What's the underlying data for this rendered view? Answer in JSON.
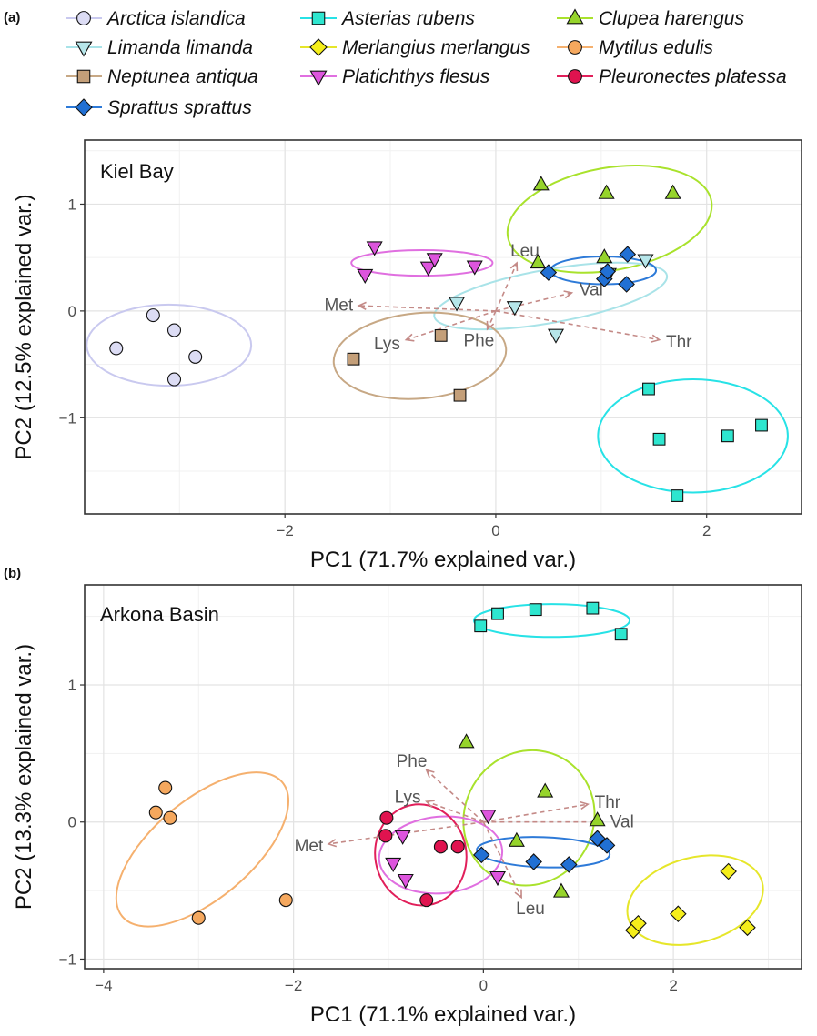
{
  "figure": {
    "panel_labels": [
      "(a)",
      "(b)"
    ]
  },
  "legend": {
    "entries": [
      {
        "species": "Arctica islandica",
        "shape": "circle",
        "fill": "#dcdcf4",
        "stroke": "#c9c9ef"
      },
      {
        "species": "Asterias rubens",
        "shape": "square",
        "fill": "#2ee6cf",
        "stroke": "#27e2e6"
      },
      {
        "species": "Clupea harengus",
        "shape": "triangle",
        "fill": "#96d42b",
        "stroke": "#a9e22c"
      },
      {
        "species": "Limanda limanda",
        "shape": "tri-down",
        "fill": "#b6e6ea",
        "stroke": "#a9e3e8"
      },
      {
        "species": "Merlangius merlangus",
        "shape": "diamond",
        "fill": "#f5ee1a",
        "stroke": "#e6e62a"
      },
      {
        "species": "Mytilus edulis",
        "shape": "circle",
        "fill": "#f5a85e",
        "stroke": "#f5b06e"
      },
      {
        "species": "Neptunea antiqua",
        "shape": "square",
        "fill": "#c49f79",
        "stroke": "#c7a885"
      },
      {
        "species": "Platichthys flesus",
        "shape": "tri-down",
        "fill": "#dd55dd",
        "stroke": "#e06fe0"
      },
      {
        "species": "Pleuronectes platessa",
        "shape": "circle",
        "fill": "#e0134f",
        "stroke": "#e11f5a"
      },
      {
        "species": "Sprattus sprattus",
        "shape": "diamond",
        "fill": "#2170d4",
        "stroke": "#2d7ad8"
      }
    ]
  },
  "chart_data": [
    {
      "type": "scatter",
      "panel": "(a)",
      "title": "Kiel Bay",
      "xlabel": "PC1 (71.7% explained var.)",
      "ylabel": "PC2 (12.5% explained var.)",
      "xlim": [
        -3.9,
        2.9
      ],
      "ylim": [
        -1.9,
        1.6
      ],
      "x_ticks": [
        -2,
        0,
        2
      ],
      "y_ticks": [
        -1,
        0,
        1
      ],
      "x_tick_labels": [
        "−2",
        "0",
        "2"
      ],
      "y_tick_labels": [
        "−1",
        "0",
        "1"
      ],
      "grid": true,
      "series": [
        {
          "name": "Arctica islandica",
          "points": [
            [
              -3.6,
              -0.35
            ],
            [
              -3.25,
              -0.04
            ],
            [
              -3.05,
              -0.18
            ],
            [
              -2.85,
              -0.43
            ],
            [
              -3.05,
              -0.64
            ]
          ],
          "ellipse": {
            "cx": -3.1,
            "cy": -0.32,
            "rx": 0.78,
            "ry": 0.38,
            "angle": 0
          }
        },
        {
          "name": "Asterias rubens",
          "points": [
            [
              1.45,
              -0.73
            ],
            [
              1.55,
              -1.2
            ],
            [
              1.72,
              -1.73
            ],
            [
              2.2,
              -1.17
            ],
            [
              2.52,
              -1.07
            ]
          ],
          "ellipse": {
            "cx": 1.87,
            "cy": -1.17,
            "rx": 0.9,
            "ry": 0.53,
            "angle": 0
          }
        },
        {
          "name": "Clupea harengus",
          "points": [
            [
              0.43,
              1.18
            ],
            [
              1.05,
              1.1
            ],
            [
              1.68,
              1.1
            ],
            [
              0.4,
              0.45
            ],
            [
              1.03,
              0.5
            ]
          ],
          "ellipse": {
            "cx": 1.08,
            "cy": 0.86,
            "rx": 0.98,
            "ry": 0.48,
            "angle": -10
          }
        },
        {
          "name": "Limanda limanda",
          "points": [
            [
              -0.37,
              0.08
            ],
            [
              0.18,
              0.04
            ],
            [
              0.57,
              -0.22
            ],
            [
              1.42,
              0.48
            ],
            [
              1.07,
              0.35
            ]
          ],
          "ellipse": {
            "cx": 0.52,
            "cy": 0.14,
            "rx": 1.12,
            "ry": 0.25,
            "angle": -10
          }
        },
        {
          "name": "Neptunea antiqua",
          "points": [
            [
              -1.35,
              -0.45
            ],
            [
              -0.52,
              -0.23
            ],
            [
              -0.34,
              -0.79
            ]
          ],
          "ellipse": {
            "cx": -0.72,
            "cy": -0.42,
            "rx": 0.82,
            "ry": 0.4,
            "angle": -5
          }
        },
        {
          "name": "Platichthys flesus",
          "points": [
            [
              -1.15,
              0.6
            ],
            [
              -1.24,
              0.34
            ],
            [
              -0.64,
              0.41
            ],
            [
              -0.58,
              0.49
            ],
            [
              -0.2,
              0.42
            ]
          ],
          "ellipse": {
            "cx": -0.7,
            "cy": 0.45,
            "rx": 0.67,
            "ry": 0.12,
            "angle": 0
          }
        },
        {
          "name": "Sprattus sprattus",
          "points": [
            [
              0.5,
              0.36
            ],
            [
              1.03,
              0.3
            ],
            [
              1.06,
              0.37
            ],
            [
              1.24,
              0.25
            ],
            [
              1.25,
              0.53
            ]
          ],
          "ellipse": {
            "cx": 1.02,
            "cy": 0.38,
            "rx": 0.5,
            "ry": 0.13,
            "angle": 0
          }
        }
      ],
      "loadings": [
        {
          "label": "Met",
          "x": -1.3,
          "y": 0.05
        },
        {
          "label": "Lys",
          "x": -0.85,
          "y": -0.27
        },
        {
          "label": "Phe",
          "x": -0.08,
          "y": -0.17
        },
        {
          "label": "Leu",
          "x": 0.2,
          "y": 0.45
        },
        {
          "label": "Val",
          "x": 0.72,
          "y": 0.17
        },
        {
          "label": "Thr",
          "x": 1.55,
          "y": -0.27
        }
      ]
    },
    {
      "type": "scatter",
      "panel": "(b)",
      "title": "Arkona Basin",
      "xlabel": "PC1 (71.1% explained var.)",
      "ylabel": "PC2 (13.3% explained var.)",
      "xlim": [
        -4.2,
        3.35
      ],
      "ylim": [
        -1.07,
        1.73
      ],
      "x_ticks": [
        -4,
        -2,
        0,
        2
      ],
      "y_ticks": [
        -1,
        0,
        1
      ],
      "x_tick_labels": [
        "−4",
        "−2",
        "0",
        "2"
      ],
      "y_tick_labels": [
        "−1",
        "0",
        "1"
      ],
      "grid": true,
      "series": [
        {
          "name": "Asterias rubens",
          "points": [
            [
              -0.03,
              1.43
            ],
            [
              0.15,
              1.52
            ],
            [
              0.55,
              1.55
            ],
            [
              1.15,
              1.56
            ],
            [
              1.45,
              1.37
            ]
          ],
          "ellipse": {
            "cx": 0.72,
            "cy": 1.47,
            "rx": 0.82,
            "ry": 0.12,
            "angle": 0
          }
        },
        {
          "name": "Clupea harengus",
          "points": [
            [
              -0.18,
              0.58
            ],
            [
              0.65,
              0.22
            ],
            [
              1.2,
              0.01
            ],
            [
              0.35,
              -0.14
            ],
            [
              0.82,
              -0.51
            ]
          ],
          "ellipse": {
            "cx": 0.48,
            "cy": 0.03,
            "rx": 0.68,
            "ry": 0.5,
            "angle": 30
          }
        },
        {
          "name": "Merlangius merlangus",
          "points": [
            [
              1.58,
              -0.79
            ],
            [
              1.63,
              -0.74
            ],
            [
              2.05,
              -0.67
            ],
            [
              2.58,
              -0.36
            ],
            [
              2.78,
              -0.77
            ]
          ],
          "ellipse": {
            "cx": 2.23,
            "cy": -0.57,
            "rx": 0.73,
            "ry": 0.31,
            "angle": -15
          }
        },
        {
          "name": "Mytilus edulis",
          "points": [
            [
              -3.45,
              0.07
            ],
            [
              -3.35,
              0.25
            ],
            [
              -3.3,
              0.03
            ],
            [
              -3.0,
              -0.7
            ],
            [
              -2.08,
              -0.57
            ]
          ],
          "ellipse": {
            "cx": -2.96,
            "cy": -0.2,
            "rx": 1.1,
            "ry": 0.36,
            "angle": -40
          }
        },
        {
          "name": "Platichthys flesus",
          "points": [
            [
              -0.85,
              -0.1
            ],
            [
              -0.95,
              -0.3
            ],
            [
              -0.82,
              -0.42
            ],
            [
              0.05,
              0.05
            ],
            [
              0.15,
              -0.4
            ]
          ],
          "ellipse": {
            "cx": -0.45,
            "cy": -0.24,
            "rx": 0.65,
            "ry": 0.28,
            "angle": -5
          }
        },
        {
          "name": "Pleuronectes platessa",
          "points": [
            [
              -1.02,
              0.03
            ],
            [
              -1.03,
              -0.1
            ],
            [
              -0.45,
              -0.18
            ],
            [
              -0.27,
              -0.18
            ],
            [
              -0.6,
              -0.57
            ]
          ],
          "ellipse": {
            "cx": -0.66,
            "cy": -0.24,
            "rx": 0.48,
            "ry": 0.37,
            "angle": -10
          }
        },
        {
          "name": "Sprattus sprattus",
          "points": [
            [
              -0.02,
              -0.24
            ],
            [
              0.53,
              -0.29
            ],
            [
              0.9,
              -0.31
            ],
            [
              1.2,
              -0.12
            ],
            [
              1.3,
              -0.17
            ]
          ],
          "ellipse": {
            "cx": 0.63,
            "cy": -0.22,
            "rx": 0.7,
            "ry": 0.11,
            "angle": 2
          }
        }
      ],
      "loadings": [
        {
          "label": "Met",
          "x": -1.63,
          "y": -0.16
        },
        {
          "label": "Phe",
          "x": -0.6,
          "y": 0.38
        },
        {
          "label": "Lys",
          "x": -0.6,
          "y": 0.15
        },
        {
          "label": "Thr",
          "x": 1.1,
          "y": 0.13
        },
        {
          "label": "Val",
          "x": 1.25,
          "y": 0.0
        },
        {
          "label": "Leu",
          "x": 0.4,
          "y": -0.55
        }
      ]
    }
  ]
}
